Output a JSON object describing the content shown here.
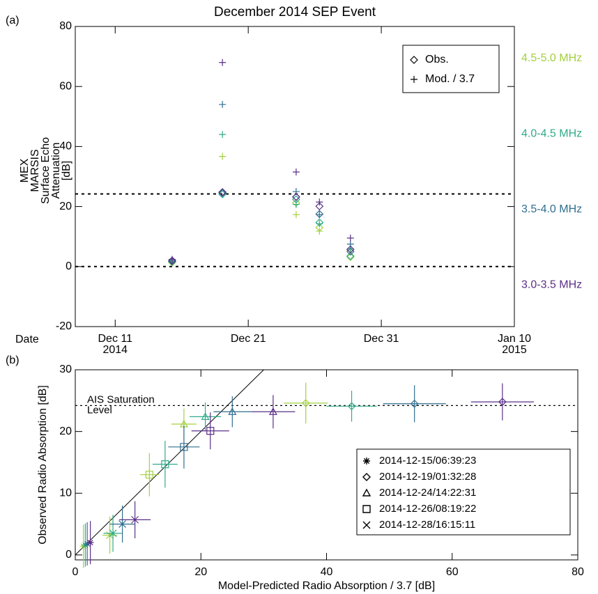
{
  "chart_data": [
    {
      "type": "scatter",
      "panel_label": "(a)",
      "title": "December 2014 SEP Event",
      "y_label": [
        "MEX",
        "MARSIS",
        "Surface Echo",
        "Attenuation",
        "[dB]"
      ],
      "x_label": "Date",
      "xlim": [
        -3,
        30
      ],
      "xticks": [
        {
          "value": 0,
          "label": "Dec 11\n2014"
        },
        {
          "value": 10,
          "label": "Dec 21"
        },
        {
          "value": 20,
          "label": "Dec 31"
        },
        {
          "value": 30,
          "label": "Jan 10\n2015"
        }
      ],
      "ylim": [
        -20,
        80
      ],
      "yticks": [
        -20,
        0,
        20,
        40,
        60,
        80
      ],
      "hlines": [
        0,
        24.2
      ],
      "legend": "top-right",
      "markers": [
        {
          "name": "Obs.",
          "symbol": "diamond"
        },
        {
          "name": "Mod. / 3.7",
          "symbol": "plus"
        }
      ],
      "x": [
        4.28,
        8.06,
        13.6,
        15.35,
        17.68
      ],
      "series": [
        {
          "name": "4.5-5.0 MHz",
          "color": "#a2d03c",
          "obs": [
            1.4,
            24.6,
            21.2,
            13.0,
            3.2
          ],
          "mod": [
            1.3,
            36.7,
            17.3,
            11.8,
            5.5
          ]
        },
        {
          "name": "4.0-4.5 MHz",
          "color": "#2fab8a",
          "obs": [
            1.6,
            24.1,
            22.4,
            14.7,
            3.5
          ],
          "mod": [
            1.6,
            44.0,
            20.7,
            14.3,
            6.0
          ]
        },
        {
          "name": "3.5-4.0 MHz",
          "color": "#2f6e8f",
          "obs": [
            1.8,
            24.5,
            23.2,
            17.5,
            5.0
          ],
          "mod": [
            1.9,
            54.0,
            25.0,
            17.3,
            7.5
          ]
        },
        {
          "name": "3.0-3.5 MHz",
          "color": "#5a2f87",
          "obs": [
            2.0,
            24.8,
            23.2,
            20.1,
            5.7
          ],
          "mod": [
            2.4,
            68.0,
            31.5,
            21.5,
            9.5
          ]
        }
      ]
    },
    {
      "type": "scatter",
      "panel_label": "(b)",
      "x_label": "Model-Predicted Radio Absorption / 3.7 [dB]",
      "y_label": "Observed Radio Absorption [dB]",
      "xlim": [
        0,
        80
      ],
      "xticks": [
        0,
        20,
        40,
        60,
        80
      ],
      "ylim": [
        -0.8,
        30
      ],
      "yticks": [
        0,
        10,
        20,
        30
      ],
      "saturation_level": 24.2,
      "saturation_label": "AIS Saturation\nLevel",
      "legend": "right",
      "point_colors": [
        "#a2d03c",
        "#2fab8a",
        "#2f6e8f",
        "#5a2f87"
      ],
      "series": [
        {
          "name": "2014-12-15/06:39:23",
          "symbol": "asterisk",
          "x": [
            1.3,
            1.6,
            1.9,
            2.4
          ],
          "y": [
            1.4,
            1.6,
            1.8,
            2.0
          ],
          "x_err": [
            0.3,
            0.3,
            0.4,
            0.4
          ],
          "y_err": [
            3.5,
            3.5,
            3.5,
            3.5
          ]
        },
        {
          "name": "2014-12-19/01:32:28",
          "symbol": "diamond",
          "x": [
            36.7,
            44.0,
            54.0,
            68.0
          ],
          "y": [
            24.6,
            24.1,
            24.5,
            24.8
          ],
          "x_err": [
            3.5,
            4.0,
            5.0,
            5.0
          ],
          "y_err": [
            3.3,
            2.5,
            3.0,
            3.0
          ]
        },
        {
          "name": "2014-12-24/14:22:31",
          "symbol": "triangle",
          "x": [
            17.3,
            20.7,
            25.0,
            31.5
          ],
          "y": [
            21.2,
            22.4,
            23.2,
            23.2
          ],
          "x_err": [
            2.0,
            2.5,
            3.0,
            3.5
          ],
          "y_err": [
            2.5,
            2.3,
            2.5,
            2.7
          ]
        },
        {
          "name": "2014-12-26/08:19:22",
          "symbol": "square",
          "x": [
            11.8,
            14.3,
            17.3,
            21.5
          ],
          "y": [
            13.0,
            14.7,
            17.5,
            20.1
          ],
          "x_err": [
            1.5,
            2.0,
            2.5,
            3.0
          ],
          "y_err": [
            3.5,
            3.8,
            3.5,
            3.0
          ]
        },
        {
          "name": "2014-12-28/16:15:11",
          "symbol": "x",
          "x": [
            5.5,
            6.0,
            7.5,
            9.5
          ],
          "y": [
            3.2,
            3.5,
            5.0,
            5.7
          ],
          "x_err": [
            1.2,
            1.5,
            2.0,
            2.5
          ],
          "y_err": [
            3.0,
            3.0,
            3.0,
            3.0
          ]
        }
      ]
    }
  ]
}
